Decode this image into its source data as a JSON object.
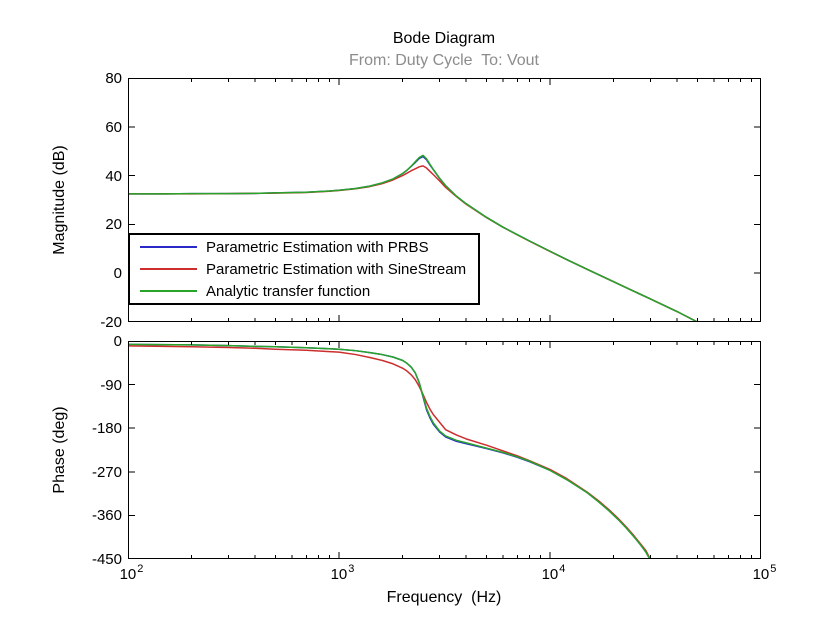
{
  "figure": {
    "title": "Bode Diagram",
    "subtitle": "From: Duty Cycle  To: Vout",
    "xlabel": "Frequency  (Hz)",
    "colors": {
      "title": "#000000",
      "subtitle": "#8c8c8c",
      "axis": "#000000",
      "background": "#ffffff",
      "prbs_blue": "#2929c8",
      "sinestream_red": "#cc2e2e",
      "analytic_green": "#28a428"
    }
  },
  "legend": {
    "position": "top-left-of-magnitude-plot",
    "entries": [
      {
        "label": "Parametric Estimation with PRBS",
        "color": "#2929c8"
      },
      {
        "label": "Parametric Estimation with SineStream",
        "color": "#cc2e2e"
      },
      {
        "label": "Analytic transfer function",
        "color": "#28a428"
      }
    ]
  },
  "chart_data": [
    {
      "type": "line",
      "name": "magnitude",
      "title": "Bode Diagram",
      "ylabel": "Magnitude (dB)",
      "xscale": "log",
      "grid": false,
      "xlim": [
        100,
        100000
      ],
      "ylim": [
        -20,
        80
      ],
      "yticks": [
        80,
        60,
        40,
        20,
        0,
        -20
      ],
      "xticks": [
        100,
        1000,
        10000,
        100000
      ],
      "x_tick_exponents": [
        2,
        3,
        4,
        5
      ],
      "show_x_tick_labels": false,
      "series": [
        {
          "name": "Parametric Estimation with PRBS",
          "color": "#2929c8",
          "points": [
            [
              100,
              32.5
            ],
            [
              150,
              32.5
            ],
            [
              200,
              32.6
            ],
            [
              300,
              32.6
            ],
            [
              400,
              32.7
            ],
            [
              500,
              32.9
            ],
            [
              700,
              33.2
            ],
            [
              900,
              33.7
            ],
            [
              1000,
              34.0
            ],
            [
              1200,
              34.7
            ],
            [
              1400,
              35.7
            ],
            [
              1600,
              37.0
            ],
            [
              1800,
              38.6
            ],
            [
              2000,
              40.8
            ],
            [
              2100,
              42.2
            ],
            [
              2200,
              43.8
            ],
            [
              2300,
              45.4
            ],
            [
              2400,
              47.0
            ],
            [
              2500,
              47.8
            ],
            [
              2600,
              46.5
            ],
            [
              2700,
              44.3
            ],
            [
              2800,
              42.4
            ],
            [
              3000,
              38.8
            ],
            [
              3200,
              35.9
            ],
            [
              3600,
              31.6
            ],
            [
              4000,
              28.5
            ],
            [
              5000,
              22.9
            ],
            [
              6000,
              18.8
            ],
            [
              7000,
              15.8
            ],
            [
              8000,
              13.2
            ],
            [
              10000,
              9.0
            ],
            [
              12000,
              5.6
            ],
            [
              15000,
              1.6
            ],
            [
              20000,
              -3.5
            ],
            [
              25000,
              -7.4
            ],
            [
              30000,
              -10.6
            ],
            [
              40000,
              -15.7
            ],
            [
              50500,
              -20.2
            ]
          ]
        },
        {
          "name": "Parametric Estimation with SineStream",
          "color": "#cc2e2e",
          "points": [
            [
              100,
              32.5
            ],
            [
              150,
              32.5
            ],
            [
              200,
              32.5
            ],
            [
              300,
              32.6
            ],
            [
              400,
              32.7
            ],
            [
              500,
              32.8
            ],
            [
              700,
              33.1
            ],
            [
              900,
              33.6
            ],
            [
              1000,
              33.9
            ],
            [
              1200,
              34.6
            ],
            [
              1400,
              35.5
            ],
            [
              1600,
              36.7
            ],
            [
              1800,
              38.2
            ],
            [
              2000,
              40.0
            ],
            [
              2100,
              41.0
            ],
            [
              2200,
              42.0
            ],
            [
              2300,
              42.8
            ],
            [
              2400,
              43.6
            ],
            [
              2500,
              44.0
            ],
            [
              2600,
              43.1
            ],
            [
              2700,
              41.7
            ],
            [
              2800,
              40.4
            ],
            [
              3000,
              37.8
            ],
            [
              3200,
              35.2
            ],
            [
              3600,
              31.4
            ],
            [
              4000,
              28.3
            ],
            [
              5000,
              22.8
            ],
            [
              6000,
              18.8
            ],
            [
              7000,
              15.7
            ],
            [
              8000,
              13.1
            ],
            [
              10000,
              8.9
            ],
            [
              12000,
              5.6
            ],
            [
              15000,
              1.6
            ],
            [
              20000,
              -3.5
            ],
            [
              25000,
              -7.4
            ],
            [
              30000,
              -10.6
            ],
            [
              40000,
              -15.7
            ],
            [
              50500,
              -20.2
            ]
          ]
        },
        {
          "name": "Analytic transfer function",
          "color": "#28a428",
          "points": [
            [
              100,
              32.5
            ],
            [
              150,
              32.5
            ],
            [
              200,
              32.6
            ],
            [
              300,
              32.6
            ],
            [
              400,
              32.7
            ],
            [
              500,
              32.9
            ],
            [
              700,
              33.2
            ],
            [
              900,
              33.7
            ],
            [
              1000,
              34.0
            ],
            [
              1200,
              34.7
            ],
            [
              1400,
              35.7
            ],
            [
              1600,
              37.0
            ],
            [
              1800,
              38.6
            ],
            [
              2000,
              40.8
            ],
            [
              2100,
              42.2
            ],
            [
              2200,
              43.9
            ],
            [
              2300,
              45.7
            ],
            [
              2400,
              47.4
            ],
            [
              2500,
              48.3
            ],
            [
              2600,
              46.9
            ],
            [
              2700,
              44.6
            ],
            [
              2800,
              42.5
            ],
            [
              3000,
              38.9
            ],
            [
              3200,
              35.9
            ],
            [
              3600,
              31.6
            ],
            [
              4000,
              28.5
            ],
            [
              5000,
              22.9
            ],
            [
              6000,
              18.8
            ],
            [
              7000,
              15.8
            ],
            [
              8000,
              13.2
            ],
            [
              10000,
              9.0
            ],
            [
              12000,
              5.6
            ],
            [
              15000,
              1.6
            ],
            [
              20000,
              -3.5
            ],
            [
              25000,
              -7.4
            ],
            [
              30000,
              -10.6
            ],
            [
              40000,
              -15.7
            ],
            [
              50500,
              -20.2
            ]
          ]
        }
      ]
    },
    {
      "type": "line",
      "name": "phase",
      "xlabel": "Frequency  (Hz)",
      "ylabel": "Phase (deg)",
      "xscale": "log",
      "grid": false,
      "xlim": [
        100,
        100000
      ],
      "ylim": [
        -450,
        0
      ],
      "yticks": [
        0,
        -90,
        -180,
        -270,
        -360,
        -450
      ],
      "xticks": [
        100,
        1000,
        10000,
        100000
      ],
      "x_tick_exponents": [
        2,
        3,
        4,
        5
      ],
      "show_x_tick_labels": true,
      "series": [
        {
          "name": "Parametric Estimation with PRBS",
          "color": "#2929c8",
          "points": [
            [
              100,
              -7
            ],
            [
              200,
              -8
            ],
            [
              300,
              -9.5
            ],
            [
              400,
              -11
            ],
            [
              500,
              -12
            ],
            [
              700,
              -14
            ],
            [
              900,
              -16
            ],
            [
              1000,
              -17
            ],
            [
              1200,
              -20
            ],
            [
              1400,
              -24
            ],
            [
              1600,
              -28
            ],
            [
              1800,
              -33
            ],
            [
              2000,
              -40
            ],
            [
              2100,
              -46
            ],
            [
              2200,
              -54
            ],
            [
              2300,
              -66
            ],
            [
              2400,
              -86
            ],
            [
              2500,
              -115
            ],
            [
              2600,
              -142
            ],
            [
              2700,
              -159
            ],
            [
              2800,
              -172
            ],
            [
              3000,
              -188
            ],
            [
              3200,
              -198
            ],
            [
              3600,
              -207
            ],
            [
              4000,
              -212
            ],
            [
              5000,
              -222
            ],
            [
              6000,
              -231
            ],
            [
              7000,
              -240
            ],
            [
              8000,
              -249
            ],
            [
              10000,
              -267
            ],
            [
              12000,
              -286
            ],
            [
              15000,
              -313
            ],
            [
              17000,
              -332
            ],
            [
              19000,
              -350
            ],
            [
              21000,
              -368
            ],
            [
              23000,
              -386
            ],
            [
              25000,
              -404
            ],
            [
              27000,
              -422
            ],
            [
              28500,
              -436
            ],
            [
              29900,
              -452
            ]
          ]
        },
        {
          "name": "Parametric Estimation with SineStream",
          "color": "#cc2e2e",
          "points": [
            [
              100,
              -10
            ],
            [
              200,
              -12
            ],
            [
              300,
              -13.5
            ],
            [
              400,
              -15
            ],
            [
              500,
              -17
            ],
            [
              700,
              -19
            ],
            [
              900,
              -22
            ],
            [
              1000,
              -23
            ],
            [
              1200,
              -28
            ],
            [
              1400,
              -34
            ],
            [
              1600,
              -40
            ],
            [
              1800,
              -47
            ],
            [
              2000,
              -56
            ],
            [
              2100,
              -62
            ],
            [
              2200,
              -70
            ],
            [
              2300,
              -80
            ],
            [
              2400,
              -94
            ],
            [
              2500,
              -110
            ],
            [
              2600,
              -127
            ],
            [
              2700,
              -141
            ],
            [
              2800,
              -152
            ],
            [
              3000,
              -168
            ],
            [
              3200,
              -183
            ],
            [
              3600,
              -194
            ],
            [
              4000,
              -202
            ],
            [
              5000,
              -215
            ],
            [
              6000,
              -227
            ],
            [
              7000,
              -237
            ],
            [
              8000,
              -247
            ],
            [
              10000,
              -265
            ],
            [
              12000,
              -284
            ],
            [
              15000,
              -312
            ],
            [
              17000,
              -330
            ],
            [
              19000,
              -348
            ],
            [
              21000,
              -366
            ],
            [
              23000,
              -384
            ],
            [
              25000,
              -402
            ],
            [
              27000,
              -420
            ],
            [
              28500,
              -433
            ],
            [
              30000,
              -452
            ]
          ]
        },
        {
          "name": "Analytic transfer function",
          "color": "#28a428",
          "points": [
            [
              100,
              -7
            ],
            [
              200,
              -8
            ],
            [
              300,
              -9.5
            ],
            [
              400,
              -11
            ],
            [
              500,
              -12
            ],
            [
              700,
              -14
            ],
            [
              900,
              -16
            ],
            [
              1000,
              -17
            ],
            [
              1200,
              -20
            ],
            [
              1400,
              -24
            ],
            [
              1600,
              -28
            ],
            [
              1800,
              -33
            ],
            [
              2000,
              -40
            ],
            [
              2100,
              -46
            ],
            [
              2200,
              -54
            ],
            [
              2300,
              -66
            ],
            [
              2400,
              -86
            ],
            [
              2500,
              -113
            ],
            [
              2600,
              -139
            ],
            [
              2700,
              -156
            ],
            [
              2800,
              -169
            ],
            [
              3000,
              -186
            ],
            [
              3200,
              -196
            ],
            [
              3600,
              -205
            ],
            [
              4000,
              -210
            ],
            [
              5000,
              -221
            ],
            [
              6000,
              -230
            ],
            [
              7000,
              -239
            ],
            [
              8000,
              -248
            ],
            [
              10000,
              -267
            ],
            [
              12000,
              -286
            ],
            [
              15000,
              -313
            ],
            [
              17000,
              -332
            ],
            [
              19000,
              -350
            ],
            [
              21000,
              -368
            ],
            [
              23000,
              -386
            ],
            [
              25000,
              -404
            ],
            [
              27000,
              -422
            ],
            [
              28500,
              -436
            ],
            [
              29900,
              -452
            ]
          ]
        }
      ]
    }
  ]
}
